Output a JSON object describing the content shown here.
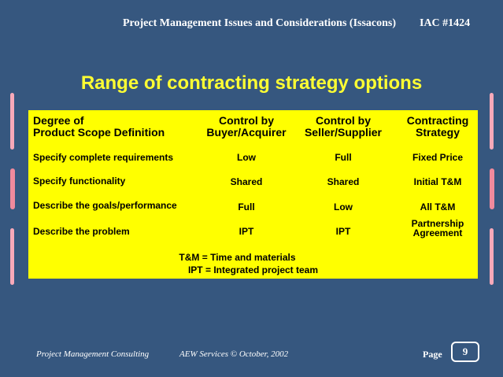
{
  "header": {
    "title": "Project Management Issues and Considerations (Issacons)",
    "code": "IAC #1424"
  },
  "slide": {
    "title": "Range of contracting strategy options"
  },
  "table": {
    "headers": [
      [
        "Degree of",
        "Product Scope Definition"
      ],
      [
        "Control by",
        "Buyer/Acquirer"
      ],
      [
        "Control by",
        "Seller/Supplier"
      ],
      [
        "Contracting",
        "Strategy"
      ]
    ],
    "rows": [
      [
        "Specify complete requirements",
        "Low",
        "Full",
        "Fixed Price"
      ],
      [
        "Specify functionality",
        "Shared",
        "Shared",
        "Initial T&M"
      ],
      [
        "Describe the goals/performance",
        "Full",
        "Low",
        "All T&M"
      ],
      [
        "Describe the problem",
        "IPT",
        "IPT",
        "Partnership Agreement"
      ]
    ],
    "notes": [
      "T&M = Time and materials",
      "IPT = Integrated project team"
    ]
  },
  "footer": {
    "left": "Project Management Consulting",
    "center": "AEW Services © October, 2002",
    "page_label": "Page",
    "page_number": "9"
  }
}
